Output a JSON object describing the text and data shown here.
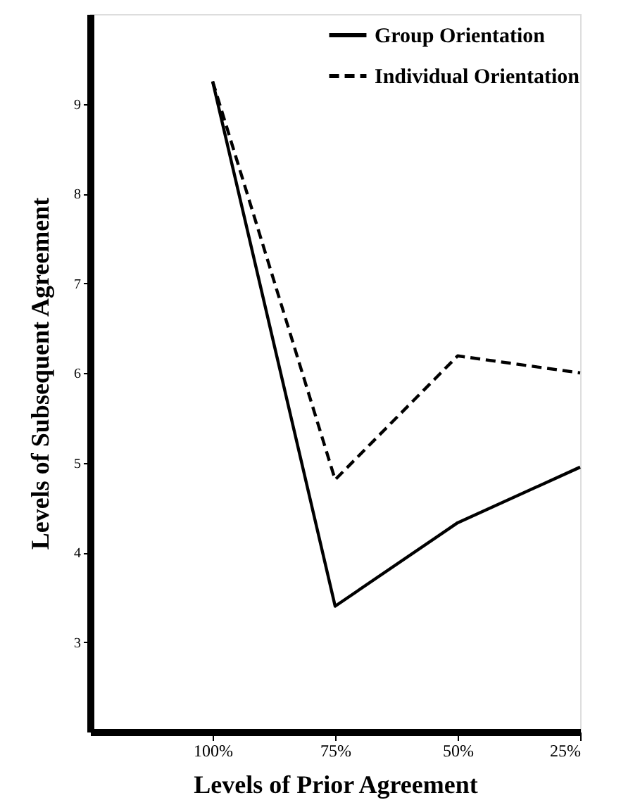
{
  "chart_data": {
    "type": "line",
    "xlabel": "Levels of Prior Agreement",
    "ylabel": "Levels of Subsequent Agreement",
    "categories": [
      "100%",
      "75%",
      "50%",
      "25%"
    ],
    "series": [
      {
        "name": "Group Orientation",
        "color": "#000000",
        "line_style": "solid",
        "values": [
          9.25,
          3.4,
          4.33,
          4.95
        ]
      },
      {
        "name": "Individual Orientation",
        "color": "#000000",
        "line_style": "dashed",
        "values": [
          9.25,
          4.81,
          6.19,
          6.0
        ]
      }
    ],
    "ylim": [
      2,
      10
    ],
    "yticks": [
      3,
      4,
      5,
      6,
      7,
      8,
      9
    ],
    "grid": false,
    "legend": "top right",
    "marker": "none"
  }
}
